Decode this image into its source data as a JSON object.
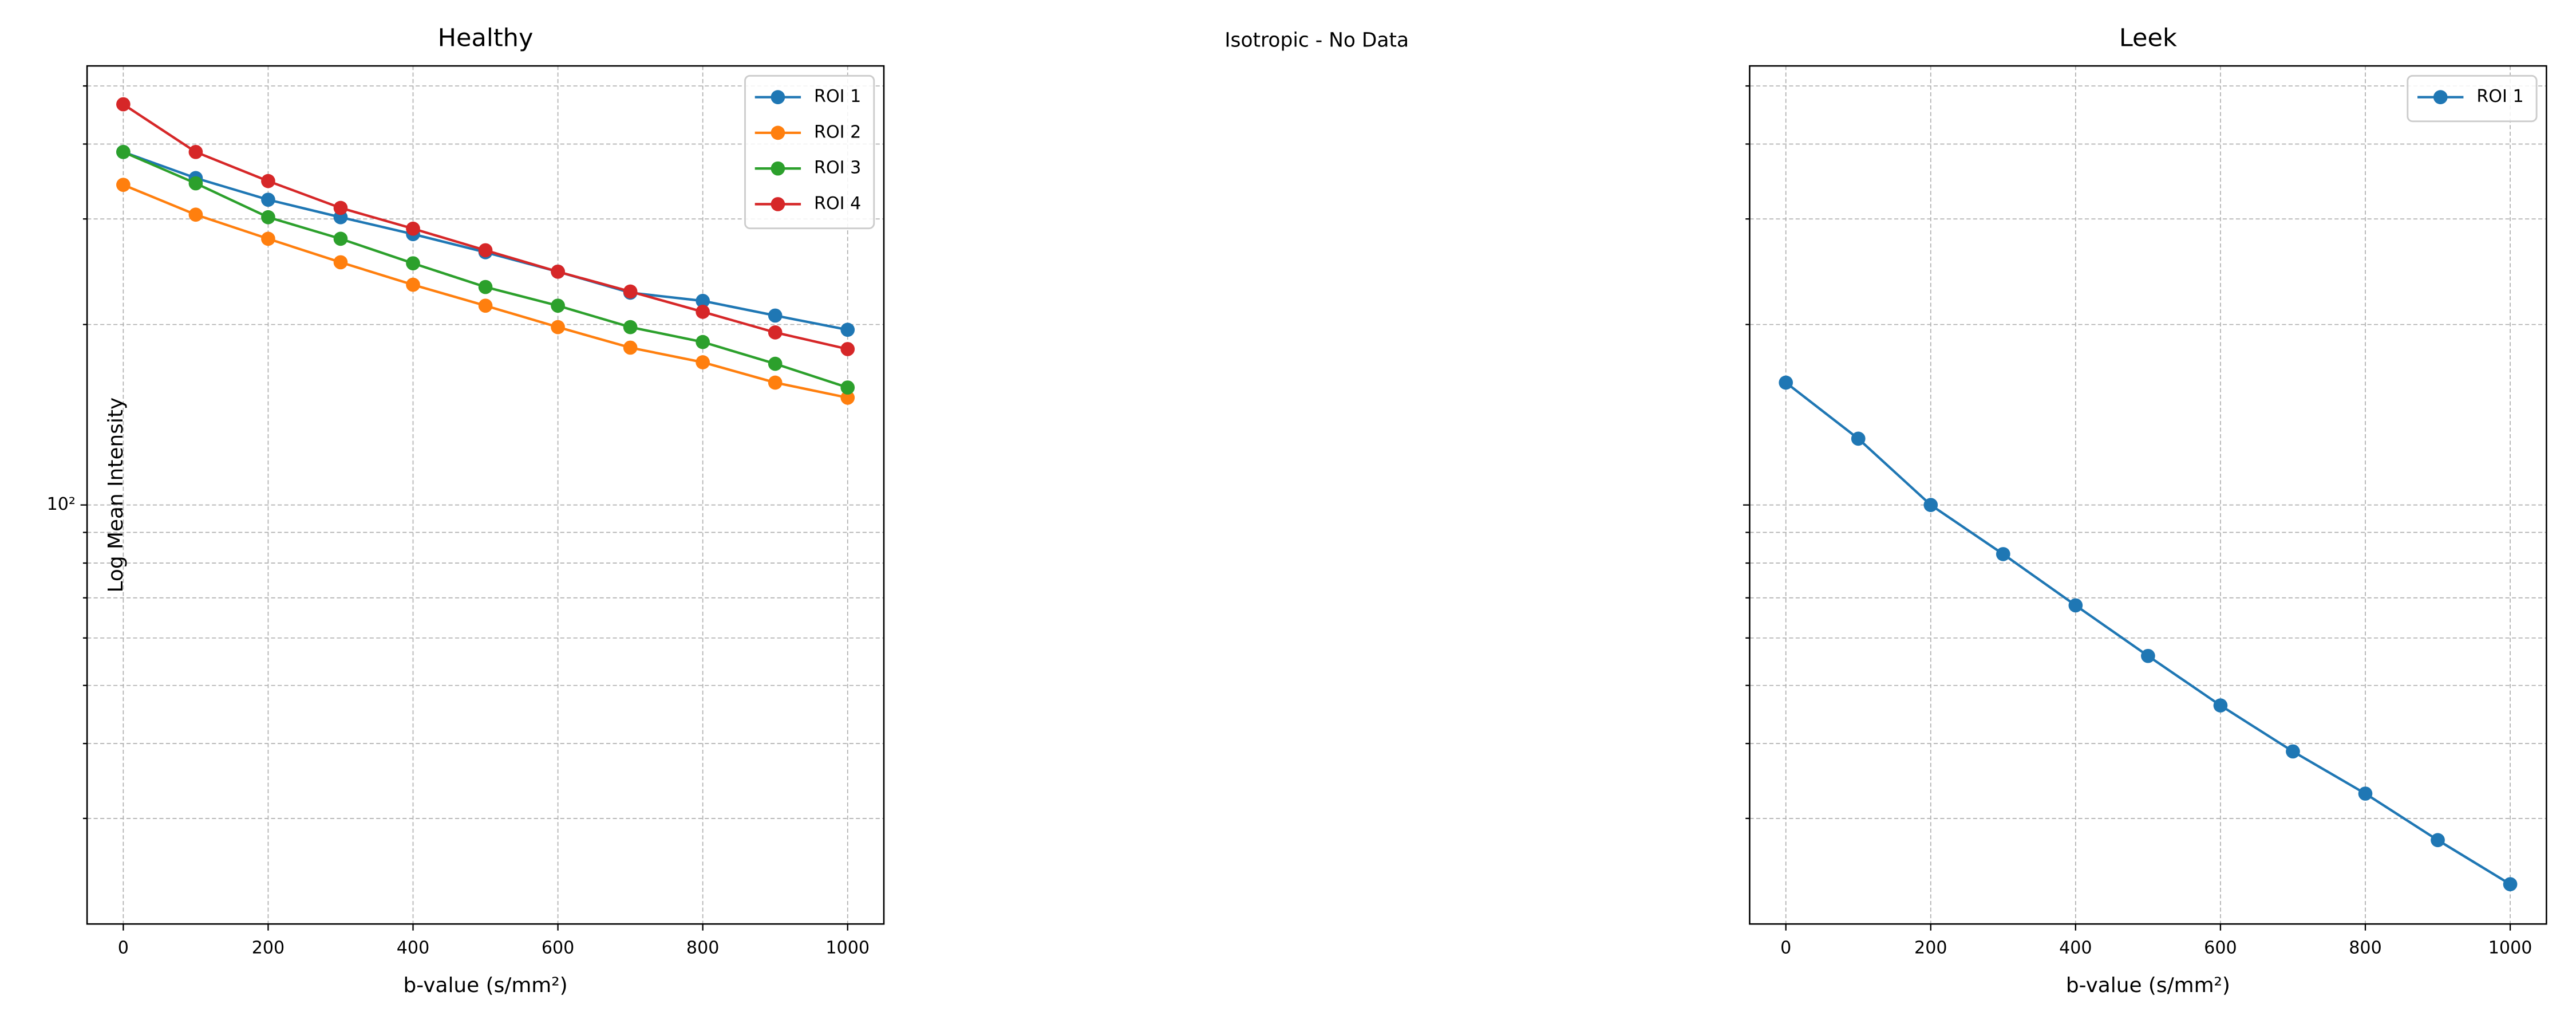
{
  "chart_data": [
    {
      "type": "line",
      "title": "Healthy",
      "xlabel": "b-value (s/mm²)",
      "ylabel": "Log Mean Intensity",
      "x": [
        0,
        100,
        200,
        300,
        400,
        500,
        600,
        700,
        800,
        900,
        1000
      ],
      "xlim": [
        -50,
        1050
      ],
      "xticks": [
        0,
        200,
        400,
        600,
        800,
        1000
      ],
      "ylim": [
        20,
        540
      ],
      "yscale": "log",
      "yticks": [
        {
          "value": 100,
          "label": "10²"
        }
      ],
      "minor_yticks": [
        30,
        40,
        50,
        60,
        70,
        80,
        90,
        200,
        300,
        400,
        500
      ],
      "ytick_labels": true,
      "grid": true,
      "legend": "upper right",
      "series": [
        {
          "name": "ROI 1",
          "color": "#1f77b4",
          "values": [
            388,
            351,
            323,
            302,
            283,
            264,
            245,
            226,
            219,
            207,
            196
          ]
        },
        {
          "name": "ROI 2",
          "color": "#ff7f0e",
          "values": [
            342,
            305,
            278,
            254,
            233,
            215,
            198,
            183,
            173,
            160,
            151
          ]
        },
        {
          "name": "ROI 3",
          "color": "#2ca02c",
          "values": [
            388,
            344,
            302,
            278,
            253,
            231,
            215,
            198,
            187,
            172,
            157
          ]
        },
        {
          "name": "ROI 4",
          "color": "#d62728",
          "values": [
            466,
            388,
            347,
            313,
            289,
            266,
            245,
            227,
            210,
            194,
            182
          ]
        }
      ]
    },
    {
      "type": "empty",
      "title": "Isotropic - No Data"
    },
    {
      "type": "line",
      "title": "Leek",
      "xlabel": "b-value (s/mm²)",
      "x": [
        0,
        100,
        200,
        300,
        400,
        500,
        600,
        700,
        800,
        900,
        1000
      ],
      "xlim": [
        -50,
        1050
      ],
      "xticks": [
        0,
        200,
        400,
        600,
        800,
        1000
      ],
      "ylim": [
        20,
        540
      ],
      "yscale": "log",
      "yticks": [
        100
      ],
      "minor_yticks": [
        30,
        40,
        50,
        60,
        70,
        80,
        90,
        200,
        300,
        400,
        500
      ],
      "ytick_labels": false,
      "grid": true,
      "legend": "upper right",
      "series": [
        {
          "name": "ROI 1",
          "color": "#1f77b4",
          "values": [
            160,
            129,
            100,
            82.8,
            68,
            56,
            46.3,
            38.8,
            33,
            27.6,
            23.3
          ]
        }
      ]
    }
  ]
}
